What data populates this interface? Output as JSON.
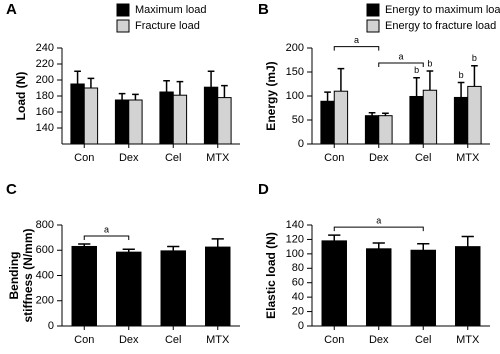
{
  "chart_data": [
    {
      "type": "bar",
      "panel_label": "A",
      "ylabel": [
        "Load (N)"
      ],
      "categories": [
        "Con",
        "Dex",
        "Cel",
        "MTX"
      ],
      "series": [
        {
          "name": "Maximum load",
          "color": "#000000",
          "values": [
            195,
            175,
            185,
            191
          ],
          "errors": [
            16,
            8,
            14,
            20
          ]
        },
        {
          "name": "Fracture load",
          "color": "#d3d3d3",
          "values": [
            190,
            175,
            181,
            178
          ],
          "errors": [
            12,
            7,
            17,
            15
          ]
        }
      ],
      "ylim": [
        120,
        240
      ],
      "yticks": [
        140,
        160,
        180,
        200,
        220,
        240
      ],
      "legend": "top-right"
    },
    {
      "type": "bar",
      "panel_label": "B",
      "ylabel": [
        "Energy (mJ)"
      ],
      "categories": [
        "Con",
        "Dex",
        "Cel",
        "MTX"
      ],
      "series": [
        {
          "name": "Energy to maximum load",
          "color": "#000000",
          "values": [
            89,
            59,
            99,
            97
          ],
          "errors": [
            19,
            6,
            39,
            31
          ]
        },
        {
          "name": "Energy to fracture load",
          "color": "#d3d3d3",
          "values": [
            110,
            59,
            112,
            120
          ],
          "errors": [
            47,
            5,
            40,
            43
          ]
        }
      ],
      "ylim": [
        0,
        200
      ],
      "yticks": [
        0,
        50,
        100,
        150,
        200
      ],
      "legend": "top-right",
      "brackets": [
        {
          "label": "a",
          "from": "Con",
          "to": "Dex"
        },
        {
          "label": "a",
          "from": "Dex",
          "to": "Cel"
        }
      ],
      "markers": [
        {
          "label": "b",
          "category": "Cel",
          "series": "Energy to maximum load"
        },
        {
          "label": "b",
          "category": "Cel",
          "series": "Energy to fracture load"
        },
        {
          "label": "b",
          "category": "MTX",
          "series": "Energy to maximum load"
        },
        {
          "label": "b",
          "category": "MTX",
          "series": "Energy to fracture load"
        }
      ]
    },
    {
      "type": "bar",
      "panel_label": "C",
      "ylabel": [
        "Bending",
        "stiffness (N/mm)"
      ],
      "categories": [
        "Con",
        "Dex",
        "Cel",
        "MTX"
      ],
      "series": [
        {
          "color": "#000000",
          "values": [
            630,
            585,
            595,
            625
          ],
          "errors": [
            20,
            23,
            35,
            65
          ]
        }
      ],
      "ylim": [
        0,
        800
      ],
      "yticks": [
        0,
        200,
        400,
        600,
        800
      ],
      "brackets": [
        {
          "label": "a",
          "from": "Con",
          "to": "Dex"
        }
      ]
    },
    {
      "type": "bar",
      "panel_label": "D",
      "ylabel": [
        "Elastic load (N)"
      ],
      "categories": [
        "Con",
        "Dex",
        "Cel",
        "MTX"
      ],
      "series": [
        {
          "color": "#000000",
          "values": [
            118,
            107,
            105,
            110
          ],
          "errors": [
            8,
            8,
            9,
            14
          ]
        }
      ],
      "ylim": [
        0,
        140
      ],
      "yticks": [
        0,
        20,
        40,
        60,
        80,
        100,
        120,
        140
      ],
      "brackets": [
        {
          "label": "a",
          "from": "Con",
          "to": "Cel"
        }
      ]
    }
  ]
}
